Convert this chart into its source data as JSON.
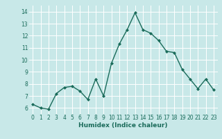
{
  "x": [
    0,
    1,
    2,
    3,
    4,
    5,
    6,
    7,
    8,
    9,
    10,
    11,
    12,
    13,
    14,
    15,
    16,
    17,
    18,
    19,
    20,
    21,
    22,
    23
  ],
  "y": [
    6.3,
    6.0,
    5.9,
    7.2,
    7.7,
    7.8,
    7.4,
    6.7,
    8.4,
    7.0,
    9.7,
    11.3,
    12.5,
    13.9,
    12.5,
    12.2,
    11.6,
    10.7,
    10.6,
    9.2,
    8.4,
    7.6,
    8.4,
    7.5
  ],
  "line_color": "#1a6b5a",
  "marker": "D",
  "marker_size": 2.0,
  "linewidth": 1.0,
  "xlabel": "Humidex (Indice chaleur)",
  "xlim": [
    -0.5,
    23.5
  ],
  "ylim": [
    5.5,
    14.5
  ],
  "yticks": [
    6,
    7,
    8,
    9,
    10,
    11,
    12,
    13,
    14
  ],
  "xticks": [
    0,
    1,
    2,
    3,
    4,
    5,
    6,
    7,
    8,
    9,
    10,
    11,
    12,
    13,
    14,
    15,
    16,
    17,
    18,
    19,
    20,
    21,
    22,
    23
  ],
  "bg_color": "#c8e8e8",
  "grid_color": "#ffffff",
  "tick_color": "#1a6b5a",
  "label_color": "#1a6b5a"
}
